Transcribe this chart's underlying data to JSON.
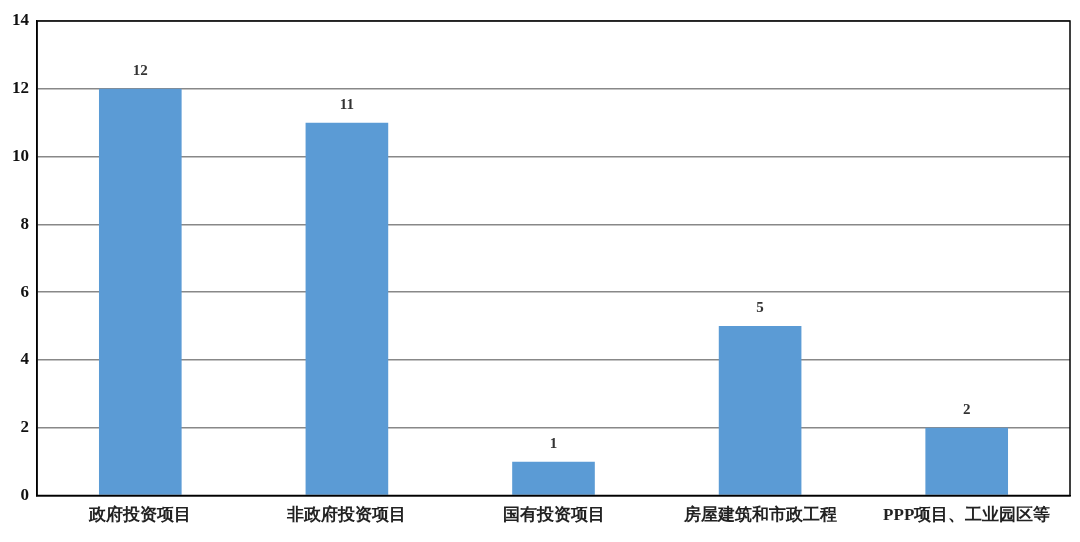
{
  "chart_data": {
    "type": "bar",
    "categories": [
      "政府投资项目",
      "非政府投资项目",
      "国有投资项目",
      "房屋建筑和市政工程",
      "PPP项目、工业园区等"
    ],
    "values": [
      12,
      11,
      1,
      5,
      2
    ],
    "color": "#5b9bd5",
    "ylim": [
      0,
      14
    ],
    "yticks": [
      0,
      2,
      4,
      6,
      8,
      10,
      12,
      14
    ],
    "grid": "y",
    "data_labels": true
  }
}
